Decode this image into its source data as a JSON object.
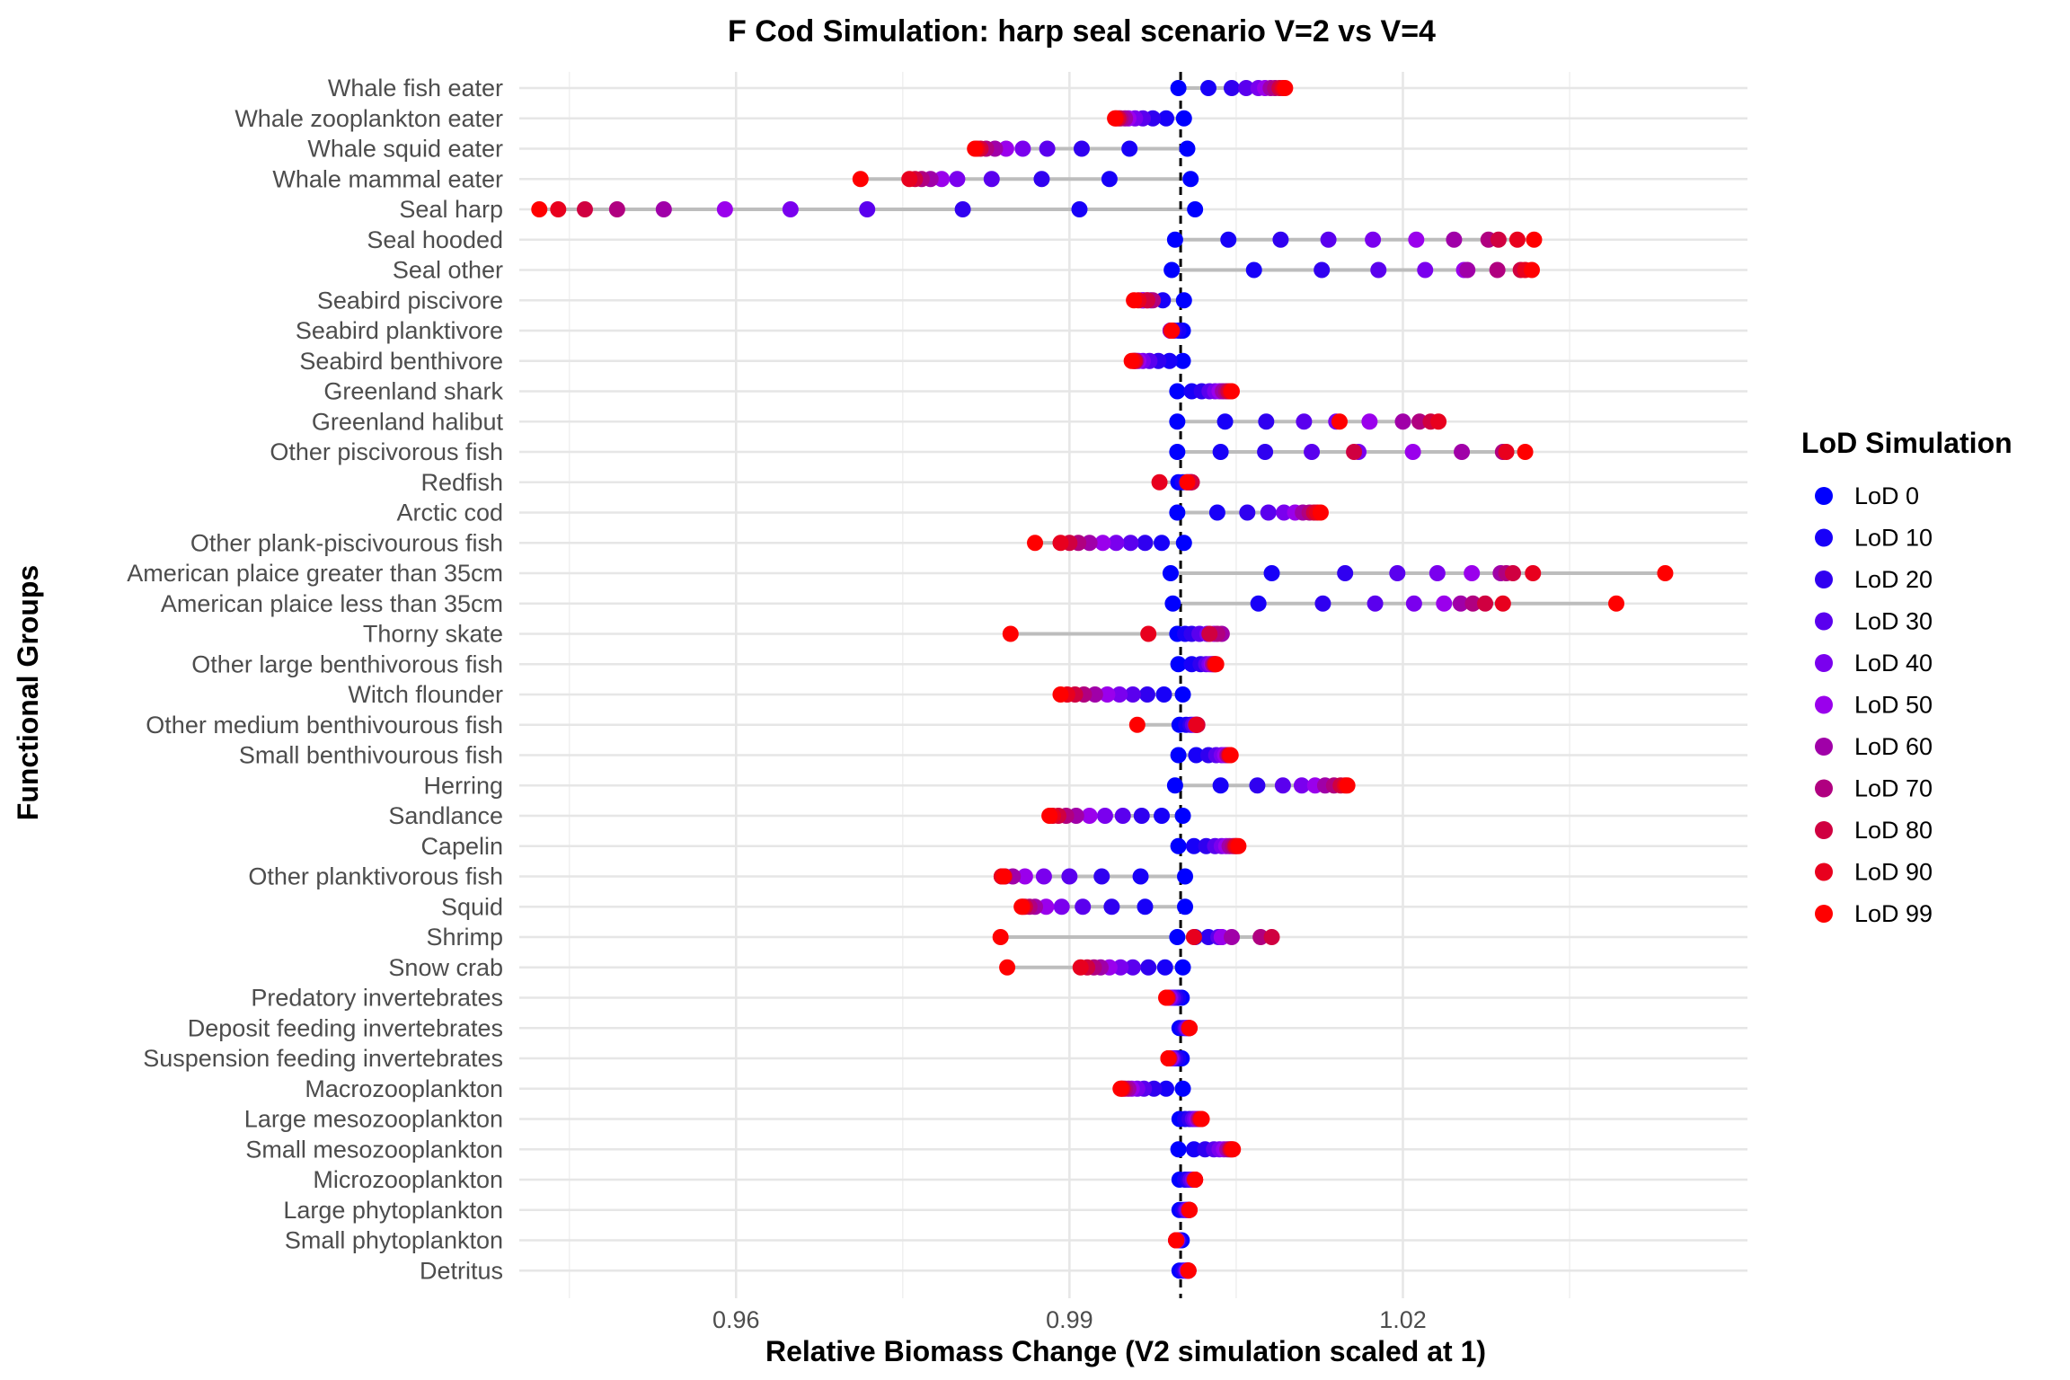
{
  "chart_data": {
    "type": "scatter",
    "title": "F Cod Simulation: harp seal scenario V=2 vs V=4",
    "xlabel": "Relative Biomass Change (V2 simulation scaled at 1)",
    "ylabel": "Functional Groups",
    "xlim": [
      0.9405,
      1.051
    ],
    "xticks": [
      0.96,
      0.99,
      1.02
    ],
    "xtick_labels": [
      "0.96",
      "0.99",
      "1.02"
    ],
    "reference_line": 1.0,
    "grid": true,
    "legend_position": "right",
    "legend_title": "LoD Simulation",
    "series_labels": [
      "LoD 0",
      "LoD 10",
      "LoD 20",
      "LoD 30",
      "LoD 40",
      "LoD 50",
      "LoD 60",
      "LoD 70",
      "LoD 80",
      "LoD 90",
      "LoD 99"
    ],
    "series_colors": [
      "#0000FF",
      "#1800F8",
      "#3000F0",
      "#5A00EE",
      "#7A00EE",
      "#9A00EC",
      "#A000A8",
      "#B00080",
      "#D00040",
      "#E8001E",
      "#FF0000"
    ],
    "categories": [
      "Whale fish eater",
      "Whale zooplankton eater",
      "Whale squid eater",
      "Whale mammal eater",
      "Seal harp",
      "Seal hooded",
      "Seal other",
      "Seabird piscivore",
      "Seabird planktivore",
      "Seabird benthivore",
      "Greenland shark",
      "Greenland halibut",
      "Other piscivorous fish",
      "Redfish",
      "Arctic cod",
      "Other plank-piscivourous fish",
      "American plaice greater than 35cm",
      "American plaice less than 35cm",
      "Thorny skate",
      "Other large benthivorous fish",
      "Witch flounder",
      "Other medium benthivourous fish",
      "Small benthivourous fish",
      "Herring",
      "Sandlance",
      "Capelin",
      "Other planktivorous fish",
      "Squid",
      "Shrimp",
      "Snow crab",
      "Predatory invertebrates",
      "Deposit feeding invertebrates",
      "Suspension feeding invertebrates",
      "Macrozooplankton",
      "Large mesozooplankton",
      "Small mesozooplankton",
      "Microzooplankton",
      "Large phytoplankton",
      "Small phytoplankton",
      "Detritus"
    ],
    "values": [
      [
        0.9998,
        1.0025,
        1.0046,
        1.0059,
        1.007,
        1.0076,
        1.0081,
        1.0085,
        1.0089,
        1.0092,
        1.0094
      ],
      [
        1.0003,
        0.9987,
        0.9975,
        0.9966,
        0.9959,
        0.9953,
        0.995,
        0.9946,
        0.9944,
        0.9942,
        0.9941
      ],
      [
        1.0006,
        0.9954,
        0.9911,
        0.988,
        0.9858,
        0.9843,
        0.9833,
        0.9825,
        0.982,
        0.9817,
        0.9815
      ],
      [
        1.0009,
        0.9936,
        0.9875,
        0.983,
        0.9799,
        0.9785,
        0.9775,
        0.9767,
        0.9761,
        0.9756,
        0.9712
      ],
      [
        1.0013,
        0.9909,
        0.9804,
        0.9718,
        0.9649,
        0.959,
        0.9535,
        0.9493,
        0.9464,
        0.944,
        0.9423
      ],
      [
        0.9995,
        1.0043,
        1.009,
        1.0133,
        1.0173,
        1.0212,
        1.0246,
        1.0277,
        1.0286,
        1.0303,
        1.0318
      ],
      [
        0.9992,
        1.0066,
        1.0127,
        1.0178,
        1.022,
        1.0255,
        1.0258,
        1.0285,
        1.0306,
        1.031,
        1.0316
      ],
      [
        1.0003,
        0.9984,
        0.9973,
        0.9967,
        0.9965,
        0.9966,
        0.997,
        0.9975,
        0.997,
        0.9962,
        0.9958
      ],
      [
        1.0002,
        0.9998,
        0.9994,
        0.9992,
        0.9991,
        0.9991,
        0.9991,
        0.9992,
        0.9992,
        0.9992,
        0.9992
      ],
      [
        1.0002,
        0.999,
        0.998,
        0.9972,
        0.9966,
        0.9962,
        0.996,
        0.9958,
        0.9959,
        0.9958,
        0.9956
      ],
      [
        0.9997,
        1.001,
        1.0019,
        1.0026,
        1.0031,
        1.0035,
        1.0038,
        1.0041,
        1.0043,
        1.0045,
        1.0046
      ],
      [
        0.9997,
        1.004,
        1.0077,
        1.0111,
        1.014,
        1.017,
        1.02,
        1.0215,
        1.0225,
        1.0232,
        1.0143
      ],
      [
        0.9997,
        1.0036,
        1.0076,
        1.0118,
        1.016,
        1.0209,
        1.0253,
        1.029,
        1.0156,
        1.0293,
        1.031
      ],
      [
        0.9998,
        1.0002,
        1.0005,
        1.0007,
        1.0008,
        1.0009,
        1.0009,
        1.001,
        1.001,
        0.9981,
        1.0006
      ],
      [
        0.9997,
        1.0033,
        1.006,
        1.0079,
        1.0093,
        1.0103,
        1.011,
        1.0116,
        1.012,
        1.0123,
        1.0126
      ],
      [
        1.0003,
        0.9983,
        0.9968,
        0.9955,
        0.9942,
        0.993,
        0.9918,
        0.9908,
        0.99,
        0.9892,
        0.9869
      ],
      [
        0.9991,
        1.0082,
        1.0148,
        1.0195,
        1.0231,
        1.0262,
        1.0288,
        1.0293,
        1.0299,
        1.0317,
        1.0436
      ],
      [
        0.9993,
        1.007,
        1.0128,
        1.0175,
        1.021,
        1.0237,
        1.0252,
        1.0263,
        1.0274,
        1.029,
        1.0392
      ],
      [
        0.9997,
        1.0004,
        1.001,
        1.0017,
        1.0024,
        1.003,
        1.0037,
        1.0033,
        1.0026,
        0.9971,
        0.9847
      ],
      [
        0.9998,
        1.001,
        1.0018,
        1.0023,
        1.0026,
        1.0028,
        1.0029,
        1.003,
        1.0031,
        1.0031,
        1.0032
      ],
      [
        1.0002,
        0.9985,
        0.997,
        0.9957,
        0.9945,
        0.9934,
        0.9923,
        0.9913,
        0.9905,
        0.9898,
        0.9892
      ],
      [
        0.9999,
        1.0005,
        1.0009,
        1.0011,
        1.0013,
        1.0014,
        1.0014,
        1.0015,
        1.0015,
        1.0014,
        0.9961
      ],
      [
        0.9998,
        1.0014,
        1.0025,
        1.0032,
        1.0037,
        1.004,
        1.0042,
        1.0043,
        1.0044,
        1.0044,
        1.0045
      ],
      [
        0.9995,
        1.0036,
        1.0069,
        1.0092,
        1.0109,
        1.0121,
        1.013,
        1.0138,
        1.0144,
        1.0148,
        1.015
      ],
      [
        1.0002,
        0.9983,
        0.9965,
        0.9948,
        0.9932,
        0.9918,
        0.9906,
        0.9897,
        0.989,
        0.9885,
        0.9882
      ],
      [
        0.9998,
        1.0012,
        1.0023,
        1.0031,
        1.0037,
        1.0041,
        1.0044,
        1.0047,
        1.0049,
        1.005,
        1.0052
      ],
      [
        1.0004,
        0.9964,
        0.9929,
        0.99,
        0.9877,
        0.986,
        0.9849,
        0.9842,
        0.9839,
        0.9839,
        0.9841
      ],
      [
        1.0004,
        0.9968,
        0.9938,
        0.9912,
        0.9893,
        0.9879,
        0.9869,
        0.9864,
        0.986,
        0.9858,
        0.9857
      ],
      [
        0.9997,
        1.0013,
        1.0025,
        1.0034,
        1.0037,
        1.0037,
        1.0046,
        1.0072,
        1.0082,
        1.0012,
        0.9838
      ],
      [
        1.0002,
        0.9986,
        0.9971,
        0.9957,
        0.9946,
        0.9936,
        0.9928,
        0.9922,
        0.9916,
        0.991,
        0.9844
      ],
      [
        1.0001,
        0.9998,
        0.9995,
        0.9993,
        0.9991,
        0.999,
        0.9989,
        0.9988,
        0.9988,
        0.9988,
        0.9987
      ],
      [
        0.9999,
        1.0002,
        1.0004,
        1.0005,
        1.0006,
        1.0007,
        1.0007,
        1.0008,
        1.0008,
        1.0008,
        1.0008
      ],
      [
        1.0001,
        0.9998,
        0.9995,
        0.9993,
        0.9992,
        0.9991,
        0.999,
        0.999,
        0.9989,
        0.9989,
        0.9989
      ],
      [
        1.0002,
        0.9987,
        0.9976,
        0.9967,
        0.9961,
        0.9956,
        0.9953,
        0.995,
        0.9948,
        0.9947,
        0.9946
      ],
      [
        0.9999,
        1.0004,
        1.0008,
        1.0011,
        1.0013,
        1.0015,
        1.0016,
        1.0017,
        1.0018,
        1.0018,
        1.0019
      ],
      [
        0.9998,
        1.0012,
        1.0022,
        1.003,
        1.0035,
        1.0039,
        1.0042,
        1.0044,
        1.0045,
        1.0046,
        1.0047
      ],
      [
        0.9999,
        1.0004,
        1.0007,
        1.0009,
        1.0011,
        1.0012,
        1.0012,
        1.0013,
        1.0013,
        1.0013,
        1.0013
      ],
      [
        0.9999,
        1.0002,
        1.0004,
        1.0005,
        1.0006,
        1.0007,
        1.0007,
        1.0008,
        1.0008,
        1.0008,
        1.0008
      ],
      [
        1.0001,
        0.9999,
        0.9998,
        0.9997,
        0.9997,
        0.9996,
        0.9996,
        0.9996,
        0.9996,
        0.9996,
        0.9996
      ],
      [
        0.9999,
        1.0002,
        1.0004,
        1.0005,
        1.0006,
        1.0006,
        1.0007,
        1.0007,
        1.0007,
        1.0007,
        1.0007
      ]
    ]
  }
}
